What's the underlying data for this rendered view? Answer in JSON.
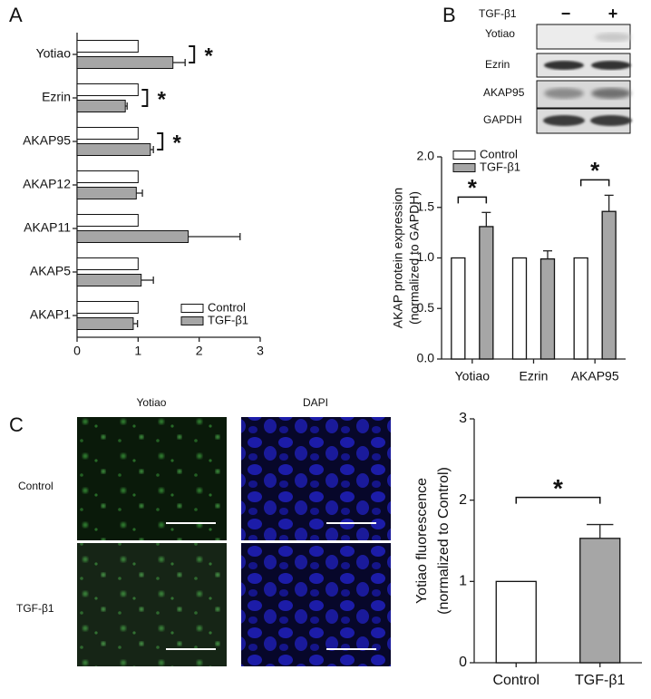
{
  "panel_labels": [
    "A",
    "B",
    "C"
  ],
  "blot": {
    "treatment": "TGF-β1",
    "lanes": [
      "−",
      "+"
    ],
    "rows": [
      "Yotiao",
      "Ezrin",
      "AKAP95",
      "GAPDH"
    ]
  },
  "micrographs": {
    "columns": [
      "Yotiao",
      "DAPI"
    ],
    "rows": [
      "Control",
      "TGF-β1"
    ]
  },
  "chart_data": [
    {
      "type": "bar",
      "orientation": "horizontal",
      "categories": [
        "Yotiao",
        "Ezrin",
        "AKAP95",
        "AKAP12",
        "AKAP11",
        "AKAP5",
        "AKAP1"
      ],
      "series": [
        {
          "name": "Control",
          "color": "#ffffff",
          "values": [
            1,
            1,
            1,
            1,
            1,
            1,
            1
          ]
        },
        {
          "name": "TGF-β1",
          "color": "#a6a6a6",
          "values": [
            1.57,
            0.79,
            1.2,
            0.97,
            1.82,
            1.05,
            0.92
          ],
          "errors": [
            0.2,
            0.03,
            0.05,
            0.1,
            0.85,
            0.2,
            0.07
          ]
        }
      ],
      "xlim": [
        0,
        3
      ],
      "xticks": [
        0,
        1,
        2,
        3
      ],
      "legend": "lower right",
      "annotations": [
        {
          "text": "*",
          "category": "Yotiao"
        },
        {
          "text": "*",
          "category": "Ezrin"
        },
        {
          "text": "*",
          "category": "AKAP95"
        }
      ]
    },
    {
      "type": "bar",
      "orientation": "vertical",
      "ylabel": [
        "AKAP protein expression",
        "(normalized to GAPDH)"
      ],
      "categories": [
        "Yotiao",
        "Ezrin",
        "AKAP95"
      ],
      "series": [
        {
          "name": "Control",
          "color": "#ffffff",
          "values": [
            1,
            1,
            1
          ]
        },
        {
          "name": "TGF-β1",
          "color": "#a6a6a6",
          "values": [
            1.31,
            0.99,
            1.46
          ],
          "errors": [
            0.14,
            0.08,
            0.16
          ]
        }
      ],
      "ylim": [
        0,
        2
      ],
      "yticks": [
        {
          "value": 0,
          "label": "0.0"
        },
        0.5,
        {
          "value": 1,
          "label": "1.0"
        },
        1.5,
        {
          "value": 2,
          "label": "2.0"
        }
      ],
      "legend": "upper left",
      "annotations": [
        {
          "text": "*",
          "category": "Yotiao"
        },
        {
          "text": "*",
          "category": "AKAP95"
        }
      ]
    },
    {
      "type": "bar",
      "orientation": "vertical",
      "ylabel": [
        "Yotiao fluorescence",
        "(normalized to Control)"
      ],
      "categories": [
        "Control",
        "TGF-β1"
      ],
      "series": [
        {
          "colors": [
            "#ffffff",
            "#a6a6a6"
          ],
          "values": [
            1,
            1.53
          ],
          "errors": [
            null,
            0.17
          ]
        }
      ],
      "ylim": [
        0,
        3
      ],
      "yticks": [
        0,
        1,
        2,
        3
      ],
      "annotations": [
        {
          "text": "*",
          "categories": [
            "Control",
            "TGF-β1"
          ]
        }
      ]
    }
  ]
}
